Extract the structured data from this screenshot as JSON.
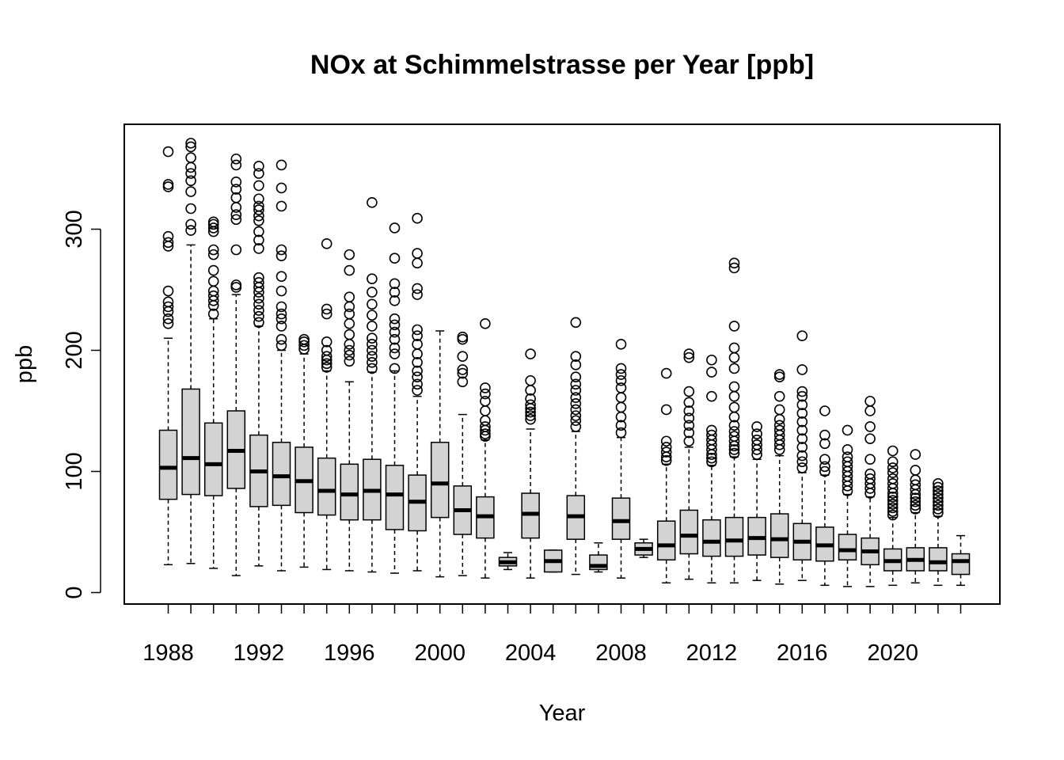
{
  "chart_data": {
    "type": "boxplot",
    "title": "NOx at Schimmelstrasse per Year [ppb]",
    "xlabel": "Year",
    "ylabel": "ppb",
    "ylim": [
      -9,
      386
    ],
    "y_ticks": [
      0,
      100,
      200,
      300
    ],
    "x_tick_labels": [
      "1988",
      "1992",
      "1996",
      "2000",
      "2004",
      "2008",
      "2012",
      "2016",
      "2020"
    ],
    "box_fill": "#d3d3d3",
    "grid": false,
    "series": [
      {
        "x": 1988,
        "q1": 77,
        "median": 103,
        "q3": 134,
        "whisker_low": 23,
        "whisker_high": 210,
        "outliers": [
          222,
          226,
          232,
          236,
          240,
          249,
          286,
          289,
          294,
          335,
          337,
          364
        ]
      },
      {
        "x": 1989,
        "q1": 81,
        "median": 111,
        "q3": 168,
        "whisker_low": 24,
        "whisker_high": 287,
        "outliers": [
          299,
          304,
          317,
          331,
          340,
          346,
          351,
          359,
          368,
          371
        ]
      },
      {
        "x": 1990,
        "q1": 80,
        "median": 106,
        "q3": 140,
        "whisker_low": 20,
        "whisker_high": 226,
        "outliers": [
          230,
          237,
          241,
          245,
          249,
          257,
          266,
          279,
          283,
          298,
          301,
          304,
          306
        ]
      },
      {
        "x": 1991,
        "q1": 86,
        "median": 117,
        "q3": 150,
        "whisker_low": 14,
        "whisker_high": 246,
        "outliers": [
          252,
          254,
          283,
          308,
          312,
          318,
          326,
          333,
          339,
          353,
          358
        ]
      },
      {
        "x": 1992,
        "q1": 71,
        "median": 100,
        "q3": 130,
        "whisker_low": 22,
        "whisker_high": 220,
        "outliers": [
          223,
          228,
          233,
          238,
          243,
          248,
          252,
          256,
          260,
          284,
          291,
          298,
          307,
          311,
          316,
          319,
          325,
          336,
          346,
          352
        ]
      },
      {
        "x": 1993,
        "q1": 72,
        "median": 96,
        "q3": 124,
        "whisker_low": 18,
        "whisker_high": 200,
        "outliers": [
          204,
          209,
          220,
          226,
          230,
          236,
          249,
          261,
          278,
          283,
          319,
          334,
          353
        ]
      },
      {
        "x": 1994,
        "q1": 66,
        "median": 92,
        "q3": 120,
        "whisker_low": 21,
        "whisker_high": 197,
        "outliers": [
          201,
          204,
          207,
          209
        ]
      },
      {
        "x": 1995,
        "q1": 64,
        "median": 84,
        "q3": 111,
        "whisker_low": 19,
        "whisker_high": 183,
        "outliers": [
          186,
          189,
          192,
          195,
          200,
          207,
          230,
          234,
          288
        ]
      },
      {
        "x": 1996,
        "q1": 60,
        "median": 81,
        "q3": 106,
        "whisker_low": 18,
        "whisker_high": 174,
        "outliers": [
          191,
          196,
          200,
          205,
          213,
          222,
          230,
          236,
          244,
          266,
          279
        ]
      },
      {
        "x": 1997,
        "q1": 60,
        "median": 84,
        "q3": 110,
        "whisker_low": 17,
        "whisker_high": 182,
        "outliers": [
          185,
          190,
          195,
          200,
          205,
          210,
          220,
          229,
          238,
          248,
          259,
          322
        ]
      },
      {
        "x": 1998,
        "q1": 52,
        "median": 81,
        "q3": 105,
        "whisker_low": 16,
        "whisker_high": 183,
        "outliers": [
          185,
          197,
          202,
          209,
          215,
          221,
          226,
          241,
          248,
          255,
          276,
          301
        ]
      },
      {
        "x": 1999,
        "q1": 51,
        "median": 75,
        "q3": 97,
        "whisker_low": 18,
        "whisker_high": 162,
        "outliers": [
          167,
          172,
          178,
          183,
          190,
          197,
          205,
          212,
          217,
          246,
          251,
          272,
          280,
          309
        ]
      },
      {
        "x": 2000,
        "q1": 62,
        "median": 90,
        "q3": 124,
        "whisker_low": 13,
        "whisker_high": 216,
        "outliers": []
      },
      {
        "x": 2001,
        "q1": 48,
        "median": 68,
        "q3": 88,
        "whisker_low": 14,
        "whisker_high": 147,
        "outliers": [
          174,
          181,
          184,
          195,
          209,
          211
        ]
      },
      {
        "x": 2002,
        "q1": 45,
        "median": 63,
        "q3": 79,
        "whisker_low": 12,
        "whisker_high": 126,
        "outliers": [
          129,
          131,
          134,
          137,
          142,
          150,
          158,
          164,
          169,
          222
        ]
      },
      {
        "x": 2003,
        "q1": 22,
        "median": 25,
        "q3": 29,
        "whisker_low": 19,
        "whisker_high": 33,
        "outliers": []
      },
      {
        "x": 2004,
        "q1": 45,
        "median": 65,
        "q3": 82,
        "whisker_low": 12,
        "whisker_high": 135,
        "outliers": [
          143,
          146,
          149,
          152,
          155,
          160,
          167,
          175,
          197
        ]
      },
      {
        "x": 2005,
        "q1": 17,
        "median": 26,
        "q3": 35,
        "whisker_low": 17,
        "whisker_high": 35,
        "outliers": []
      },
      {
        "x": 2006,
        "q1": 44,
        "median": 63,
        "q3": 80,
        "whisker_low": 15,
        "whisker_high": 133,
        "outliers": [
          137,
          142,
          146,
          151,
          156,
          161,
          167,
          172,
          178,
          188,
          195,
          223
        ]
      },
      {
        "x": 2007,
        "q1": 19,
        "median": 22,
        "q3": 31,
        "whisker_low": 17,
        "whisker_high": 41,
        "outliers": []
      },
      {
        "x": 2008,
        "q1": 44,
        "median": 59,
        "q3": 78,
        "whisker_low": 12,
        "whisker_high": 128,
        "outliers": [
          132,
          138,
          145,
          153,
          161,
          169,
          175,
          180,
          185,
          205
        ]
      },
      {
        "x": 2009,
        "q1": 31,
        "median": 36,
        "q3": 41,
        "whisker_low": 29,
        "whisker_high": 44,
        "outliers": []
      },
      {
        "x": 2010,
        "q1": 27,
        "median": 39,
        "q3": 59,
        "whisker_low": 8,
        "whisker_high": 106,
        "outliers": [
          109,
          112,
          116,
          120,
          125,
          151,
          181
        ]
      },
      {
        "x": 2011,
        "q1": 32,
        "median": 47,
        "q3": 68,
        "whisker_low": 11,
        "whisker_high": 120,
        "outliers": [
          125,
          132,
          138,
          144,
          150,
          157,
          166,
          194,
          197
        ]
      },
      {
        "x": 2012,
        "q1": 30,
        "median": 42,
        "q3": 60,
        "whisker_low": 8,
        "whisker_high": 105,
        "outliers": [
          108,
          111,
          114,
          118,
          122,
          126,
          130,
          134,
          162,
          182,
          192
        ]
      },
      {
        "x": 2013,
        "q1": 30,
        "median": 43,
        "q3": 62,
        "whisker_low": 8,
        "whisker_high": 112,
        "outliers": [
          115,
          118,
          121,
          125,
          129,
          133,
          138,
          145,
          153,
          162,
          170,
          185,
          194,
          202,
          220,
          268,
          272
        ]
      },
      {
        "x": 2014,
        "q1": 31,
        "median": 45,
        "q3": 62,
        "whisker_low": 10,
        "whisker_high": 110,
        "outliers": [
          114,
          118,
          122,
          126,
          131,
          137
        ]
      },
      {
        "x": 2015,
        "q1": 29,
        "median": 44,
        "q3": 65,
        "whisker_low": 7,
        "whisker_high": 113,
        "outliers": [
          118,
          122,
          126,
          130,
          134,
          138,
          143,
          151,
          162,
          178,
          180
        ]
      },
      {
        "x": 2016,
        "q1": 27,
        "median": 42,
        "q3": 57,
        "whisker_low": 10,
        "whisker_high": 99,
        "outliers": [
          103,
          108,
          113,
          120,
          127,
          134,
          141,
          148,
          155,
          162,
          166,
          184,
          212
        ]
      },
      {
        "x": 2017,
        "q1": 26,
        "median": 39,
        "q3": 54,
        "whisker_low": 6,
        "whisker_high": 97,
        "outliers": [
          100,
          104,
          110,
          123,
          130,
          150
        ]
      },
      {
        "x": 2018,
        "q1": 27,
        "median": 35,
        "q3": 48,
        "whisker_low": 5,
        "whisker_high": 81,
        "outliers": [
          84,
          88,
          92,
          96,
          100,
          104,
          108,
          112,
          118,
          134
        ]
      },
      {
        "x": 2019,
        "q1": 23,
        "median": 34,
        "q3": 45,
        "whisker_low": 5,
        "whisker_high": 79,
        "outliers": [
          82,
          86,
          90,
          94,
          98,
          110,
          127,
          137,
          150,
          158
        ]
      },
      {
        "x": 2020,
        "q1": 18,
        "median": 26,
        "q3": 36,
        "whisker_low": 6,
        "whisker_high": 62,
        "outliers": [
          64,
          67,
          70,
          73,
          76,
          79,
          82,
          86,
          90,
          94,
          99,
          103,
          108,
          117
        ]
      },
      {
        "x": 2021,
        "q1": 18,
        "median": 27,
        "q3": 37,
        "whisker_low": 8,
        "whisker_high": 66,
        "outliers": [
          69,
          72,
          75,
          78,
          81,
          85,
          89,
          93,
          101,
          114
        ]
      },
      {
        "x": 2022,
        "q1": 18,
        "median": 25,
        "q3": 37,
        "whisker_low": 6,
        "whisker_high": 63,
        "outliers": [
          66,
          69,
          72,
          75,
          78,
          81,
          84,
          87,
          90
        ]
      },
      {
        "x": 2023,
        "q1": 15,
        "median": 26,
        "q3": 32,
        "whisker_low": 6,
        "whisker_high": 47,
        "outliers": []
      }
    ]
  }
}
